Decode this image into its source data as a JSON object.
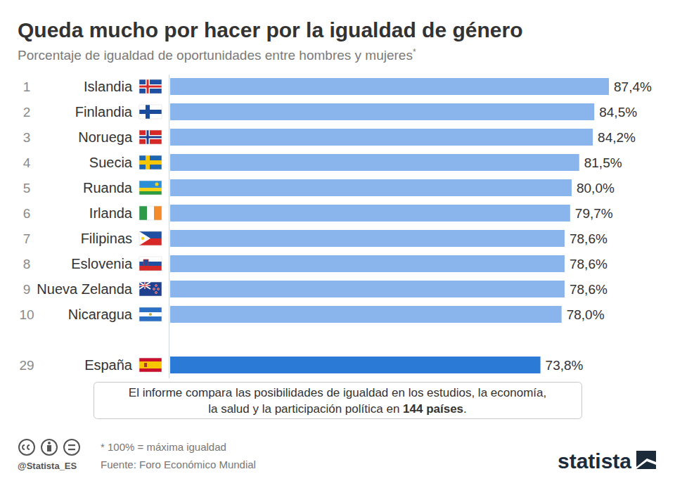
{
  "chart_data": {
    "type": "bar",
    "orientation": "horizontal",
    "title": "Queda mucho por hacer por la igualdad de género",
    "subtitle": "Porcentaje de igualdad de oportunidades entre hombres y mujeres",
    "subtitle_mark": "*",
    "ranks": [
      1,
      2,
      3,
      4,
      5,
      6,
      7,
      8,
      9,
      10,
      29
    ],
    "categories": [
      "Islandia",
      "Finlandia",
      "Noruega",
      "Suecia",
      "Ruanda",
      "Irlanda",
      "Filipinas",
      "Eslovenia",
      "Nueva Zelanda",
      "Nicaragua",
      "España"
    ],
    "values": [
      87.4,
      84.5,
      84.2,
      81.5,
      80.0,
      79.7,
      78.6,
      78.6,
      78.6,
      78.0,
      73.8
    ],
    "value_labels": [
      "87,4%",
      "84,5%",
      "84,2%",
      "81,5%",
      "80,0%",
      "79,7%",
      "78,6%",
      "78,6%",
      "78,6%",
      "78,0%",
      "73,8%"
    ],
    "colors": [
      "#8ab5ec",
      "#8ab5ec",
      "#8ab5ec",
      "#8ab5ec",
      "#8ab5ec",
      "#8ab5ec",
      "#8ab5ec",
      "#8ab5ec",
      "#8ab5ec",
      "#8ab5ec",
      "#2b7ad6"
    ],
    "data_labels": true,
    "tick_labels": false,
    "grid": false,
    "annotation": {
      "line1": "El informe compara las posibilidades de igualdad en los estudios, la economía,",
      "line2": "la salud y la participación política en ",
      "line2_bold": "144 países",
      "line2_end": "."
    },
    "footnote": "* 100% = máxima igualdad",
    "source": "Fuente: Foro Económico Mundial",
    "handle": "@Statista_ES",
    "logo": "statista"
  }
}
